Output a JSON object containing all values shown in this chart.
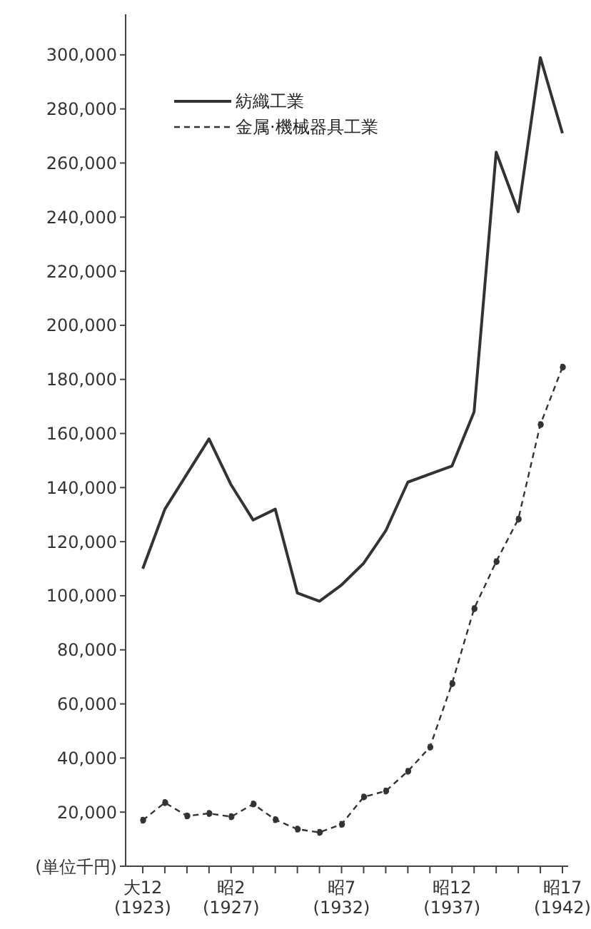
{
  "chart_data": {
    "type": "line",
    "categories": [
      "大12 (1923)",
      null,
      null,
      null,
      "昭2 (1927)",
      null,
      null,
      null,
      null,
      "昭7 (1932)",
      null,
      null,
      null,
      null,
      "昭12 (1937)",
      null,
      null,
      null,
      null,
      "昭17 (1942)"
    ],
    "series": [
      {
        "name": "紡織工業",
        "color": "#333333",
        "line_style": "solid",
        "marker": "none",
        "values": [
          110000,
          132000,
          145000,
          158000,
          141000,
          128000,
          132000,
          101000,
          98000,
          104000,
          112000,
          124000,
          142000,
          145000,
          148000,
          168000,
          264000,
          242000,
          299000,
          271000
        ]
      },
      {
        "name": "金属·機械器具工業",
        "color": "#333333",
        "line_style": "dashed",
        "marker": "circle",
        "values": [
          17000,
          23500,
          18600,
          19500,
          18300,
          23000,
          17200,
          13700,
          12500,
          15500,
          25600,
          27800,
          35100,
          44000,
          67500,
          95200,
          112600,
          128300,
          163300,
          184500
        ]
      }
    ],
    "ylim": [
      0,
      315000
    ],
    "yticks": [
      {
        "value": 0,
        "label": "(単位千円)"
      },
      {
        "value": 20000,
        "label": "20,000"
      },
      {
        "value": 40000,
        "label": "40,000"
      },
      {
        "value": 60000,
        "label": "60,000"
      },
      {
        "value": 80000,
        "label": "80,000"
      },
      {
        "value": 100000,
        "label": "100,000"
      },
      {
        "value": 120000,
        "label": "120,000"
      },
      {
        "value": 140000,
        "label": "140,000"
      },
      {
        "value": 160000,
        "label": "160,000"
      },
      {
        "value": 180000,
        "label": "180,000"
      },
      {
        "value": 200000,
        "label": "200,000"
      },
      {
        "value": 220000,
        "label": "220,000"
      },
      {
        "value": 240000,
        "label": "240,000"
      },
      {
        "value": 260000,
        "label": "260,000"
      },
      {
        "value": 280000,
        "label": "280,000"
      },
      {
        "value": 300000,
        "label": "300,000"
      }
    ],
    "grid": false,
    "legend": "top left"
  }
}
